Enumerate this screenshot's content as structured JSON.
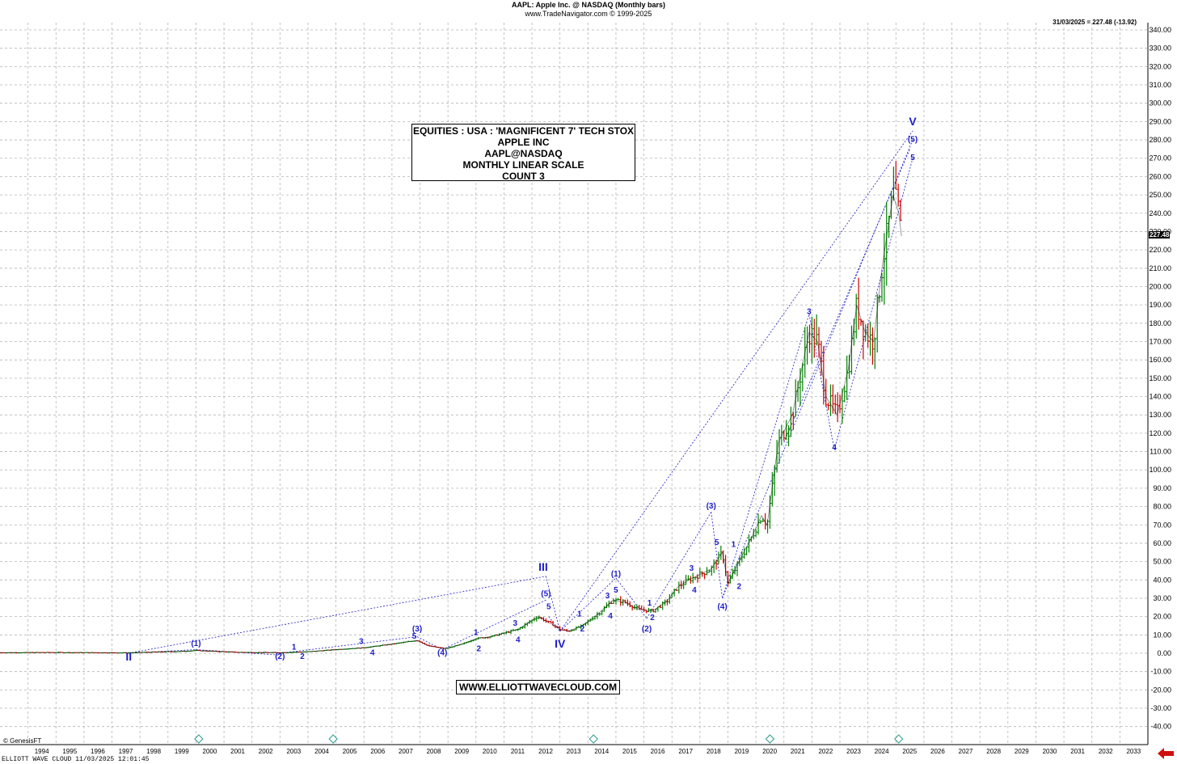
{
  "header": {
    "title": "AAPL:  Apple Inc. @ NASDAQ  (Monthly bars)",
    "subtitle": "www.TradeNavigator.com © 1999-2025"
  },
  "last_quote": "31/03/2025 = 227.48 (-13.92)",
  "price_tag": "227.48",
  "info_box": {
    "line1": "EQUITIES : USA : 'MAGNIFICENT 7' TECH STOX",
    "line2": "APPLE INC",
    "line3": "AAPL@NASDAQ",
    "line4": "MONTHLY LINEAR SCALE",
    "line5": "COUNT 3"
  },
  "website": "WWW.ELLIOTTWAVECLOUD.COM",
  "genesis": "© GenesisFT",
  "footer": "ELLIOTT WAVE CLOUD   11/03/2025 12:01:45",
  "colors": {
    "wave": "#1e1ec8",
    "up_bar": "#008000",
    "down_bar": "#cc0000",
    "grid": "#b4b4b4",
    "arrow": "#d01010"
  },
  "chart_data": {
    "type": "line",
    "title": "AAPL:  Apple Inc. @ NASDAQ  (Monthly bars)",
    "xlabel": "",
    "ylabel": "",
    "xlim": [
      1993.0,
      2034.0
    ],
    "ylim": [
      -50,
      345
    ],
    "grid": true,
    "x_ticks": [
      "1994",
      "1995",
      "1996",
      "1997",
      "1998",
      "1999",
      "2000",
      "2001",
      "2002",
      "2003",
      "2004",
      "2005",
      "2006",
      "2007",
      "2008",
      "2009",
      "2010",
      "2011",
      "2012",
      "2013",
      "2014",
      "2015",
      "2016",
      "2017",
      "2018",
      "2019",
      "2020",
      "2021",
      "2022",
      "2023",
      "2024",
      "2025",
      "2026",
      "2027",
      "2028",
      "2029",
      "2030",
      "2031",
      "2032",
      "2033"
    ],
    "y_ticks": [
      "340.00",
      "330.00",
      "320.00",
      "310.00",
      "300.00",
      "290.00",
      "280.00",
      "270.00",
      "260.00",
      "250.00",
      "240.00",
      "230.00",
      "220.00",
      "210.00",
      "200.00",
      "190.00",
      "180.00",
      "170.00",
      "160.00",
      "150.00",
      "140.00",
      "130.00",
      "120.00",
      "110.00",
      "100.00",
      "90.00",
      "80.00",
      "70.00",
      "60.00",
      "50.00",
      "40.00",
      "30.00",
      "20.00",
      "10.00",
      "0.00",
      "-10.00",
      "-20.00",
      "-30.00",
      "-40.00",
      "-50.00"
    ],
    "series": [
      {
        "x": [
          1993.0,
          1995.0,
          1997.5,
          1999.5,
          2000.0,
          2000.7,
          2001.5,
          2003.0,
          2004.0,
          2005.0,
          2006.0,
          2007.0,
          2007.9,
          2008.3,
          2008.9,
          2009.5,
          2010.0,
          2010.5,
          2011.0,
          2011.5,
          2012.2,
          2012.7,
          2013.0,
          2013.3,
          2013.8,
          2014.4,
          2014.9,
          2015.3,
          2015.8,
          2016.3,
          2016.8,
          2017.2,
          2017.6,
          2018.0,
          2018.4,
          2018.8,
          2019.0,
          2019.4,
          2019.9,
          2020.2,
          2020.4,
          2020.8,
          2021.3,
          2021.9,
          2022.2,
          2022.5,
          2022.9,
          2023.3,
          2023.6,
          2023.9,
          2024.2,
          2024.5,
          2024.9,
          2025.1,
          2025.2
        ],
        "y": [
          0.3,
          0.4,
          0.2,
          1.0,
          1.5,
          1.0,
          0.5,
          0.3,
          0.8,
          2.0,
          3.0,
          5.0,
          7.0,
          4.0,
          2.5,
          5.0,
          8.0,
          9.0,
          11.0,
          13.0,
          20.0,
          16.0,
          13.0,
          12.0,
          15.0,
          22.0,
          29.0,
          28.0,
          24.0,
          23.0,
          28.0,
          36.0,
          40.0,
          43.0,
          46.0,
          55.0,
          38.0,
          50.0,
          65.0,
          75.0,
          70.0,
          115.0,
          130.0,
          175.0,
          170.0,
          140.0,
          130.0,
          155.0,
          190.0,
          175.0,
          170.0,
          210.0,
          250.0,
          240.0,
          227.5
        ]
      }
    ],
    "wave_labels": [
      {
        "text": "II",
        "x": 1997.6,
        "y": -4
      },
      {
        "text": "(1)",
        "x": 2000.0,
        "y": 4
      },
      {
        "text": "(2)",
        "x": 2003.0,
        "y": -3
      },
      {
        "text": "1",
        "x": 2003.5,
        "y": 2
      },
      {
        "text": "2",
        "x": 2003.8,
        "y": -3
      },
      {
        "text": "3",
        "x": 2005.9,
        "y": 5
      },
      {
        "text": "4",
        "x": 2006.3,
        "y": -1
      },
      {
        "text": "(3)",
        "x": 2007.9,
        "y": 12
      },
      {
        "text": "5",
        "x": 2007.8,
        "y": 8
      },
      {
        "text": "(4)",
        "x": 2008.8,
        "y": -1
      },
      {
        "text": "1",
        "x": 2010.0,
        "y": 10
      },
      {
        "text": "2",
        "x": 2010.1,
        "y": 1
      },
      {
        "text": "3",
        "x": 2011.4,
        "y": 15
      },
      {
        "text": "4",
        "x": 2011.5,
        "y": 6
      },
      {
        "text": "(5)",
        "x": 2012.5,
        "y": 31
      },
      {
        "text": "5",
        "x": 2012.6,
        "y": 24
      },
      {
        "text": "III",
        "x": 2012.4,
        "y": 45
      },
      {
        "text": "IV",
        "x": 2013.0,
        "y": 3
      },
      {
        "text": "1",
        "x": 2013.7,
        "y": 20
      },
      {
        "text": "2",
        "x": 2013.8,
        "y": 12
      },
      {
        "text": "3",
        "x": 2014.7,
        "y": 30
      },
      {
        "text": "4",
        "x": 2014.8,
        "y": 19
      },
      {
        "text": "5",
        "x": 2015.0,
        "y": 33
      },
      {
        "text": "(1)",
        "x": 2015.0,
        "y": 42
      },
      {
        "text": "1",
        "x": 2016.2,
        "y": 26
      },
      {
        "text": "2",
        "x": 2016.3,
        "y": 18
      },
      {
        "text": "(2)",
        "x": 2016.1,
        "y": 12
      },
      {
        "text": "3",
        "x": 2017.7,
        "y": 45
      },
      {
        "text": "4",
        "x": 2017.8,
        "y": 33
      },
      {
        "text": "(3)",
        "x": 2018.4,
        "y": 79
      },
      {
        "text": "5",
        "x": 2018.6,
        "y": 59
      },
      {
        "text": "(4)",
        "x": 2018.8,
        "y": 24
      },
      {
        "text": "1",
        "x": 2019.2,
        "y": 58
      },
      {
        "text": "2",
        "x": 2019.4,
        "y": 35
      },
      {
        "text": "3",
        "x": 2021.9,
        "y": 185
      },
      {
        "text": "4",
        "x": 2022.8,
        "y": 111
      },
      {
        "text": "V",
        "x": 2025.6,
        "y": 288
      },
      {
        "text": "(5)",
        "x": 2025.6,
        "y": 279
      },
      {
        "text": "5",
        "x": 2025.6,
        "y": 269
      }
    ]
  }
}
